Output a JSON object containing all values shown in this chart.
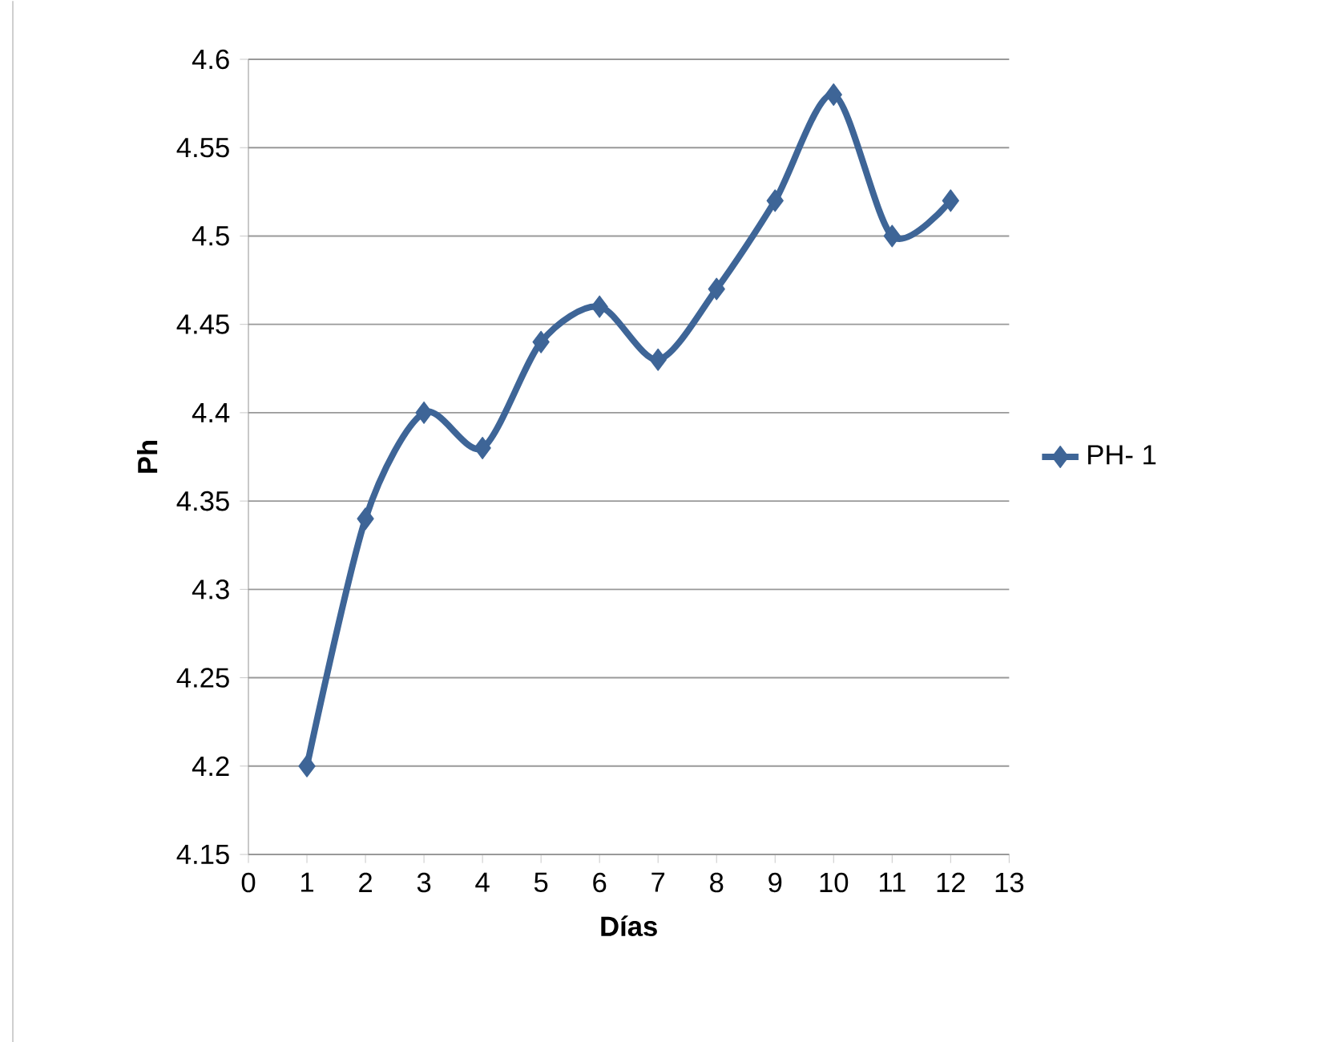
{
  "chart_data": {
    "type": "line",
    "xlabel": "Días",
    "ylabel": "Ph",
    "x": [
      1,
      2,
      3,
      4,
      5,
      6,
      7,
      8,
      9,
      10,
      11,
      12
    ],
    "series": [
      {
        "name": "PH- 1",
        "color": "#3e6597",
        "values": [
          4.2,
          4.34,
          4.4,
          4.38,
          4.44,
          4.46,
          4.43,
          4.47,
          4.52,
          4.58,
          4.5,
          4.52
        ]
      }
    ],
    "xlim": [
      0,
      13
    ],
    "xticks": [
      0,
      1,
      2,
      3,
      4,
      5,
      6,
      7,
      8,
      9,
      10,
      11,
      12,
      13
    ],
    "ylim": [
      4.15,
      4.6
    ],
    "yticks": [
      4.15,
      4.2,
      4.25,
      4.3,
      4.35,
      4.4,
      4.45,
      4.5,
      4.55,
      4.6
    ],
    "grid": "y",
    "legend": "right",
    "marker": "diamond",
    "line_style": "solid"
  }
}
